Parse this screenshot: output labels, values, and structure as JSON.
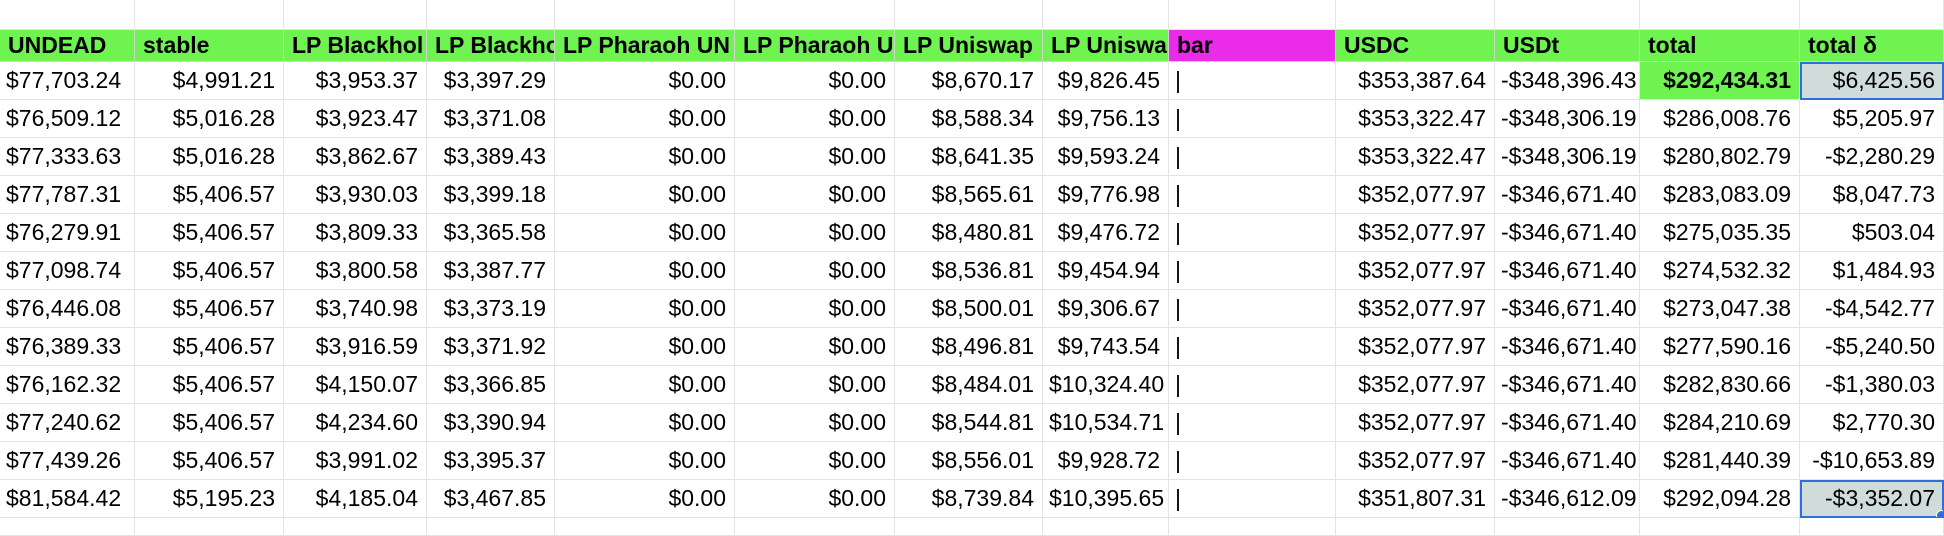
{
  "sheet": {
    "headers": [
      "UNDEAD",
      "stable",
      "LP Blackhol",
      "LP Blackho",
      "LP Pharaoh UN",
      "LP Pharaoh U",
      "LP Uniswap",
      "LP Uniswa",
      "bar",
      "USDC",
      "USDt",
      "total",
      "total δ"
    ],
    "rows": [
      [
        "$77,703.24",
        "$4,991.21",
        "$3,953.37",
        "$3,397.29",
        "$0.00",
        "$0.00",
        "$8,670.17",
        "$9,826.45",
        "|",
        "$353,387.64",
        "-$348,396.43",
        "$292,434.31",
        "$6,425.56"
      ],
      [
        "$76,509.12",
        "$5,016.28",
        "$3,923.47",
        "$3,371.08",
        "$0.00",
        "$0.00",
        "$8,588.34",
        "$9,756.13",
        "|",
        "$353,322.47",
        "-$348,306.19",
        "$286,008.76",
        "$5,205.97"
      ],
      [
        "$77,333.63",
        "$5,016.28",
        "$3,862.67",
        "$3,389.43",
        "$0.00",
        "$0.00",
        "$8,641.35",
        "$9,593.24",
        "|",
        "$353,322.47",
        "-$348,306.19",
        "$280,802.79",
        "-$2,280.29"
      ],
      [
        "$77,787.31",
        "$5,406.57",
        "$3,930.03",
        "$3,399.18",
        "$0.00",
        "$0.00",
        "$8,565.61",
        "$9,776.98",
        "|",
        "$352,077.97",
        "-$346,671.40",
        "$283,083.09",
        "$8,047.73"
      ],
      [
        "$76,279.91",
        "$5,406.57",
        "$3,809.33",
        "$3,365.58",
        "$0.00",
        "$0.00",
        "$8,480.81",
        "$9,476.72",
        "|",
        "$352,077.97",
        "-$346,671.40",
        "$275,035.35",
        "$503.04"
      ],
      [
        "$77,098.74",
        "$5,406.57",
        "$3,800.58",
        "$3,387.77",
        "$0.00",
        "$0.00",
        "$8,536.81",
        "$9,454.94",
        "|",
        "$352,077.97",
        "-$346,671.40",
        "$274,532.32",
        "$1,484.93"
      ],
      [
        "$76,446.08",
        "$5,406.57",
        "$3,740.98",
        "$3,373.19",
        "$0.00",
        "$0.00",
        "$8,500.01",
        "$9,306.67",
        "|",
        "$352,077.97",
        "-$346,671.40",
        "$273,047.38",
        "-$4,542.77"
      ],
      [
        "$76,389.33",
        "$5,406.57",
        "$3,916.59",
        "$3,371.92",
        "$0.00",
        "$0.00",
        "$8,496.81",
        "$9,743.54",
        "|",
        "$352,077.97",
        "-$346,671.40",
        "$277,590.16",
        "-$5,240.50"
      ],
      [
        "$76,162.32",
        "$5,406.57",
        "$4,150.07",
        "$3,366.85",
        "$0.00",
        "$0.00",
        "$8,484.01",
        "$10,324.40",
        "|",
        "$352,077.97",
        "-$346,671.40",
        "$282,830.66",
        "-$1,380.03"
      ],
      [
        "$77,240.62",
        "$5,406.57",
        "$4,234.60",
        "$3,390.94",
        "$0.00",
        "$0.00",
        "$8,544.81",
        "$10,534.71",
        "|",
        "$352,077.97",
        "-$346,671.40",
        "$284,210.69",
        "$2,770.30"
      ],
      [
        "$77,439.26",
        "$5,406.57",
        "$3,991.02",
        "$3,395.37",
        "$0.00",
        "$0.00",
        "$8,556.01",
        "$9,928.72",
        "|",
        "$352,077.97",
        "-$346,671.40",
        "$281,440.39",
        "-$10,653.89"
      ],
      [
        "$81,584.42",
        "$5,195.23",
        "$4,185.04",
        "$3,467.85",
        "$0.00",
        "$0.00",
        "$8,739.84",
        "$10,395.65",
        "|",
        "$351,807.31",
        "-$346,612.09",
        "$292,094.28",
        "-$3,352.07"
      ]
    ]
  },
  "colors": {
    "header_green": "#6ef351",
    "header_magenta": "#ea2bea",
    "highlight_grey": "#cfdcd9",
    "selection_blue": "#2f6fdc"
  }
}
